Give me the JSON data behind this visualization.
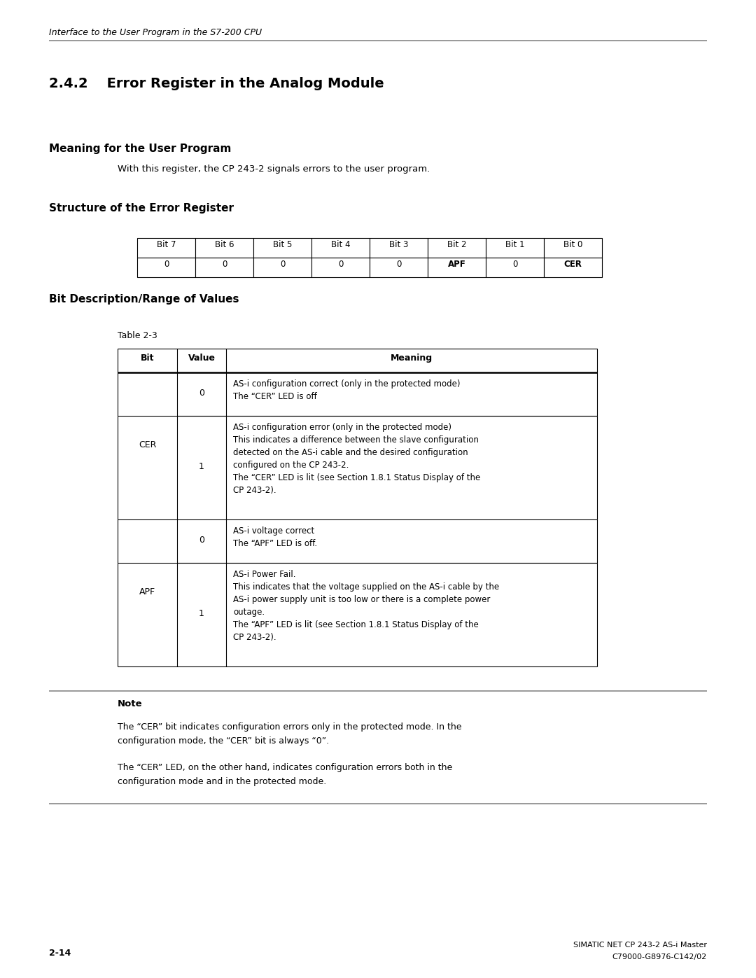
{
  "bg_color": "#ffffff",
  "header_italic": "Interface to the User Program in the S7-200 CPU",
  "section_title": "2.4.2    Error Register in the Analog Module",
  "subsection1": "Meaning for the User Program",
  "subsection1_text": "With this register, the CP 243-2 signals errors to the user program.",
  "subsection2": "Structure of the Error Register",
  "bit_headers": [
    "Bit 7",
    "Bit 6",
    "Bit 5",
    "Bit 4",
    "Bit 3",
    "Bit 2",
    "Bit 1",
    "Bit 0"
  ],
  "bit_values": [
    "0",
    "0",
    "0",
    "0",
    "0",
    "APF",
    "0",
    "CER"
  ],
  "bit_values_bold": [
    false,
    false,
    false,
    false,
    false,
    true,
    false,
    true
  ],
  "subsection3": "Bit Description/Range of Values",
  "table_caption": "Table 2-3",
  "table_col_headers": [
    "Bit",
    "Value",
    "Meaning"
  ],
  "table_rows": [
    {
      "bit": "CER",
      "value": "0",
      "meaning_lines": [
        "AS-i configuration correct (only in the protected mode)",
        "The “CER” LED is off"
      ]
    },
    {
      "bit": "",
      "value": "1",
      "meaning_lines": [
        "AS-i configuration error (only in the protected mode)",
        "This indicates a difference between the slave configuration",
        "detected on the AS-i cable and the desired configuration",
        "configured on the CP 243-2.",
        "The “CER” LED is lit (see Section 1.8.1 Status Display of the",
        "CP 243-2)."
      ]
    },
    {
      "bit": "APF",
      "value": "0",
      "meaning_lines": [
        "AS-i voltage correct",
        "The “APF” LED is off."
      ]
    },
    {
      "bit": "",
      "value": "1",
      "meaning_lines": [
        "AS-i Power Fail.",
        "This indicates that the voltage supplied on the AS-i cable by the",
        "AS-i power supply unit is too low or there is a complete power",
        "outage.",
        "The “APF” LED is lit (see Section 1.8.1 Status Display of the",
        "CP 243-2)."
      ]
    }
  ],
  "note_title": "Note",
  "note_text1_lines": [
    "The “CER” bit indicates configuration errors only in the protected mode. In the",
    "configuration mode, the “CER” bit is always “0”."
  ],
  "note_text2_lines": [
    "The “CER” LED, on the other hand, indicates configuration errors both in the",
    "configuration mode and in the protected mode."
  ],
  "footer_left": "2-14",
  "footer_right1": "SIMATIC NET CP 243-2 AS-i Master",
  "footer_right2": "C79000-G8976-C142/02"
}
